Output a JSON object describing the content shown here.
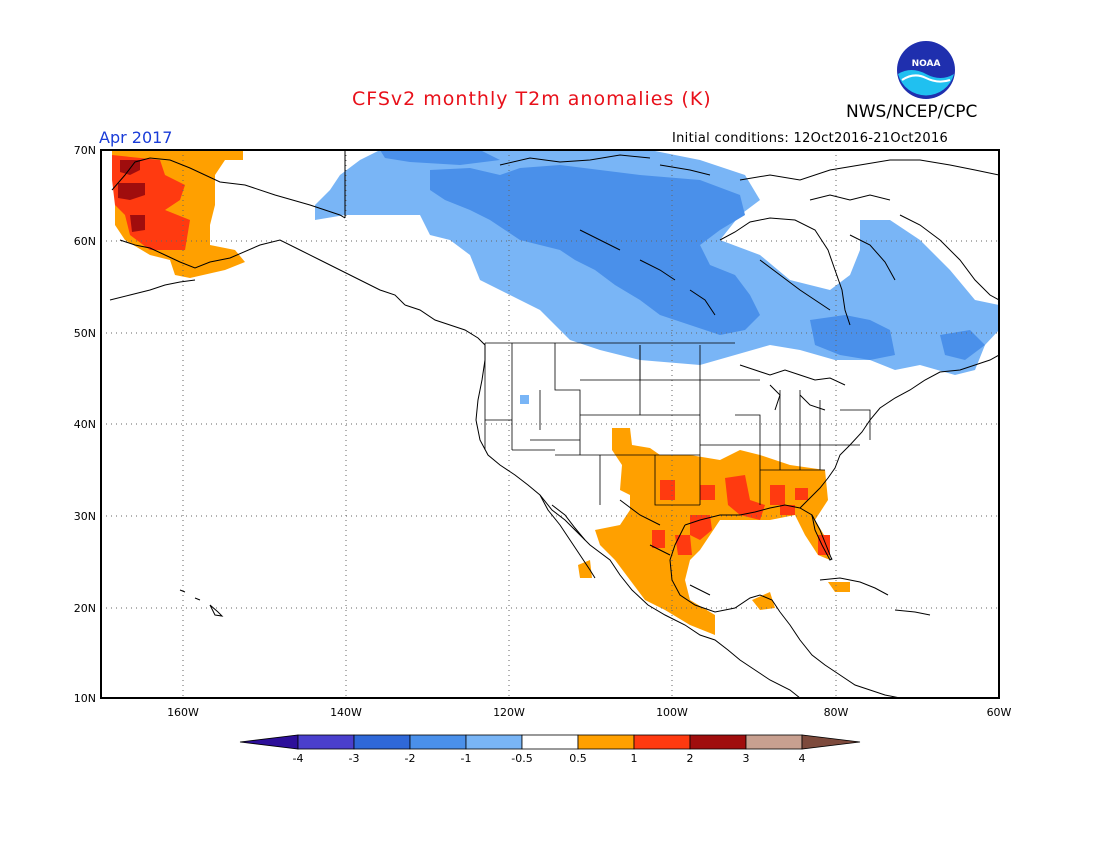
{
  "header": {
    "title": "CFSv2 monthly T2m anomalies (K)",
    "month": "Apr 2017",
    "agency": "NWS/NCEP/CPC",
    "initial_conditions": "Initial conditions: 12Oct2016-21Oct2016",
    "logo_text": "NOAA"
  },
  "map": {
    "projection": "lat-lon",
    "lat_range": [
      10,
      70
    ],
    "lon_range": [
      -170,
      -60
    ],
    "lat_ticks": [
      "10N",
      "20N",
      "30N",
      "40N",
      "50N",
      "60N",
      "70N"
    ],
    "lon_ticks": [
      "160W",
      "140W",
      "120W",
      "100W",
      "80W",
      "60W"
    ],
    "gridlines": "dotted",
    "anomaly_regions": [
      {
        "name": "alaska-warm",
        "category": "0.5 to 1"
      },
      {
        "name": "alaska-west-coast-warm",
        "category": "1 to 2"
      },
      {
        "name": "alaska-northwest-warm",
        "category": "2 to 3"
      },
      {
        "name": "canada-cold",
        "category": "-1 to -0.5"
      },
      {
        "name": "hudson-bay-cold",
        "category": "-2 to -1"
      },
      {
        "name": "southern-us-mexico-warm",
        "category": "0.5 to 1"
      },
      {
        "name": "gulf-coast-warm",
        "category": "1 to 2"
      }
    ]
  },
  "colorbar": {
    "labels": [
      "-4",
      "-3",
      "-2",
      "-1",
      "-0.5",
      "0.5",
      "1",
      "2",
      "3",
      "4"
    ],
    "colors": [
      "#2d0f9a",
      "#4a3fcd",
      "#2f68d8",
      "#4a90ea",
      "#79b5f6",
      "#ffffff",
      "#ffa000",
      "#ff3a10",
      "#a00d0d",
      "#c8a090",
      "#7d4a3c"
    ]
  },
  "colors": {
    "warm_05": "#ffa000",
    "warm_1": "#ff3a10",
    "warm_2": "#a00d0d",
    "cool_05": "#79b5f6",
    "cool_1": "#4a90ea",
    "title_red": "#e8101a",
    "month_blue": "#1a3cd8"
  }
}
